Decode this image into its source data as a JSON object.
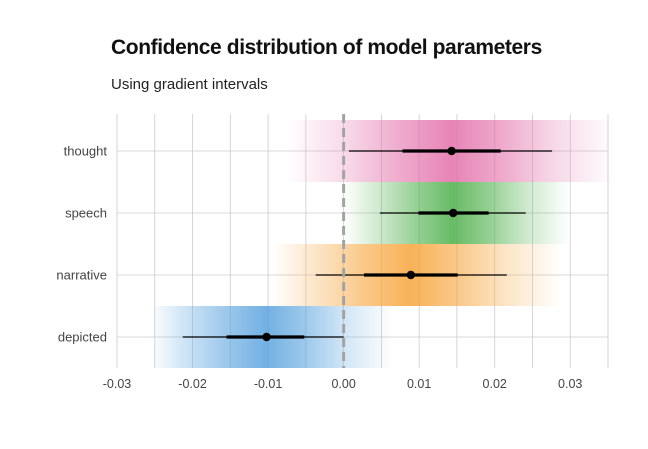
{
  "chart_data": {
    "type": "gradient-interval",
    "title": "Confidence distribution of model parameters",
    "subtitle": "Using gradient intervals",
    "xlabel": "",
    "ylabel": "",
    "xlim": [
      -0.03,
      0.035
    ],
    "xticks": [
      -0.03,
      -0.02,
      -0.01,
      0.0,
      0.01,
      0.02,
      0.03
    ],
    "xtick_labels": [
      "-0.03",
      "-0.02",
      "-0.01",
      "0.00",
      "0.01",
      "0.02",
      "0.03"
    ],
    "reference_line": 0.0,
    "grid": true,
    "categories": [
      "thought",
      "speech",
      "narrative",
      "depicted"
    ],
    "series": [
      {
        "name": "thought",
        "estimate": 0.0143,
        "inner": [
          0.0078,
          0.0208
        ],
        "outer": [
          0.0007,
          0.0276
        ],
        "gradient": [
          -0.0075,
          0.036
        ],
        "color": "#e36fa9"
      },
      {
        "name": "speech",
        "estimate": 0.0145,
        "inner": [
          0.0099,
          0.0192
        ],
        "outer": [
          0.0048,
          0.0241
        ],
        "gradient": [
          0.0,
          0.03
        ],
        "color": "#4daf4a"
      },
      {
        "name": "narrative",
        "estimate": 0.0089,
        "inner": [
          0.0027,
          0.0151
        ],
        "outer": [
          -0.0037,
          0.0216
        ],
        "gradient": [
          -0.0095,
          0.029
        ],
        "color": "#f7a43a"
      },
      {
        "name": "depicted",
        "estimate": -0.0102,
        "inner": [
          -0.0155,
          -0.0052
        ],
        "outer": [
          -0.0213,
          0.0
        ],
        "gradient": [
          -0.0255,
          0.0065
        ],
        "color": "#5aa3de"
      }
    ]
  }
}
